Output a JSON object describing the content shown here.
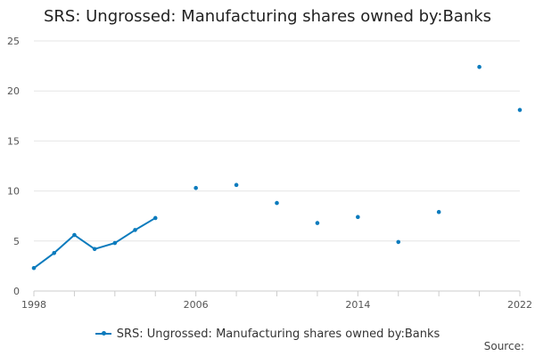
{
  "chart_data": {
    "type": "line",
    "title": "SRS: Ungrossed: Manufacturing shares owned by:Banks",
    "xlabel": "",
    "ylabel": "",
    "xlim": [
      1998,
      2022
    ],
    "ylim": [
      0,
      25
    ],
    "x_ticks": [
      1998,
      2006,
      2014,
      2022
    ],
    "y_ticks": [
      0,
      5,
      10,
      15,
      20,
      25
    ],
    "x_minor_ticks": [
      1998,
      2000,
      2002,
      2004,
      2006,
      2008,
      2010,
      2012,
      2014,
      2016,
      2018,
      2020,
      2022
    ],
    "grid": true,
    "legend_position": "bottom",
    "series": [
      {
        "name": "SRS: Ungrossed: Manufacturing shares owned by:Banks",
        "color": "#0b7bbd",
        "points": [
          {
            "x": 1998,
            "y": 2.3
          },
          {
            "x": 1999,
            "y": 3.8
          },
          {
            "x": 2000,
            "y": 5.6
          },
          {
            "x": 2001,
            "y": 4.2
          },
          {
            "x": 2002,
            "y": 4.8
          },
          {
            "x": 2003,
            "y": 6.1
          },
          {
            "x": 2004,
            "y": 7.3
          },
          {
            "x": 2006,
            "y": 10.3
          },
          {
            "x": 2008,
            "y": 10.6
          },
          {
            "x": 2010,
            "y": 8.8
          },
          {
            "x": 2012,
            "y": 6.8
          },
          {
            "x": 2014,
            "y": 7.4
          },
          {
            "x": 2016,
            "y": 4.9
          },
          {
            "x": 2018,
            "y": 7.9
          },
          {
            "x": 2020,
            "y": 22.4
          },
          {
            "x": 2022,
            "y": 18.1
          }
        ]
      }
    ]
  },
  "source_label": "Source:"
}
